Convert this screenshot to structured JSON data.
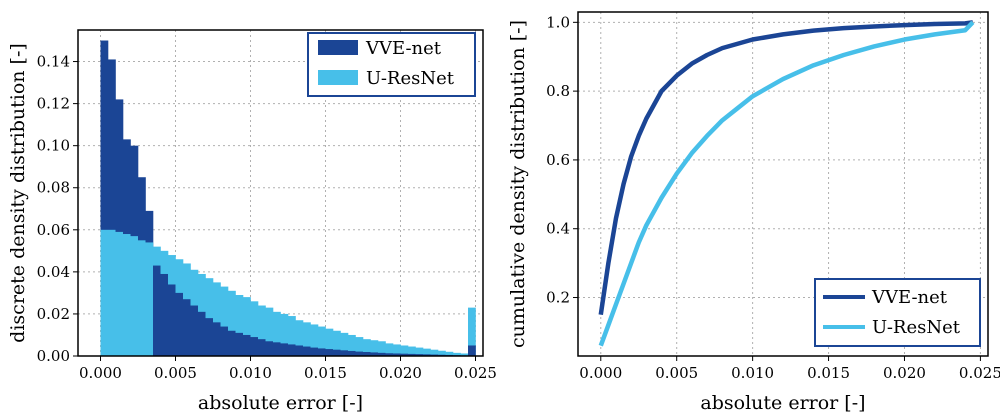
{
  "colors": {
    "vve": "#1b4595",
    "ures": "#47bfe9",
    "legend_border": "#1b4595"
  },
  "chart_data": [
    {
      "type": "bar",
      "xlabel": "absolute error [-]",
      "ylabel": "discrete density distribution [-]",
      "xlim": [
        -0.0015,
        0.0255
      ],
      "ylim": [
        0,
        0.155
      ],
      "xticks": [
        "0.000",
        "0.005",
        "0.010",
        "0.015",
        "0.020",
        "0.025"
      ],
      "yticks": [
        "0.00",
        "0.02",
        "0.04",
        "0.06",
        "0.08",
        "0.10",
        "0.12",
        "0.14"
      ],
      "grid": true,
      "legend_position": "top-right",
      "bin_width": 0.0005,
      "bin_start": 0.0,
      "series": [
        {
          "name": "VVE-net",
          "values": [
            0.15,
            0.141,
            0.122,
            0.103,
            0.1,
            0.085,
            0.069,
            0.043,
            0.039,
            0.034,
            0.03,
            0.027,
            0.024,
            0.021,
            0.018,
            0.016,
            0.014,
            0.012,
            0.011,
            0.01,
            0.009,
            0.008,
            0.007,
            0.0065,
            0.006,
            0.0055,
            0.005,
            0.0045,
            0.004,
            0.0036,
            0.0033,
            0.003,
            0.0027,
            0.0024,
            0.0021,
            0.0019,
            0.0017,
            0.0015,
            0.0013,
            0.0012,
            0.0011,
            0.001,
            0.0009,
            0.0008,
            0.0007,
            0.0006,
            0.0005,
            0.0004,
            0.0003,
            0.005
          ]
        },
        {
          "name": "U-ResNet",
          "values": [
            0.06,
            0.06,
            0.059,
            0.058,
            0.057,
            0.055,
            0.054,
            0.052,
            0.05,
            0.048,
            0.046,
            0.044,
            0.041,
            0.039,
            0.037,
            0.035,
            0.033,
            0.031,
            0.029,
            0.028,
            0.026,
            0.024,
            0.023,
            0.021,
            0.02,
            0.019,
            0.017,
            0.016,
            0.015,
            0.014,
            0.013,
            0.012,
            0.011,
            0.01,
            0.009,
            0.008,
            0.0075,
            0.007,
            0.006,
            0.0055,
            0.005,
            0.0045,
            0.004,
            0.0035,
            0.003,
            0.0025,
            0.002,
            0.0015,
            0.0012,
            0.023
          ]
        }
      ]
    },
    {
      "type": "line",
      "xlabel": "absolute error [-]",
      "ylabel": "cumulative density distribution [-]",
      "xlim": [
        -0.0015,
        0.0255
      ],
      "ylim": [
        0.03,
        1.03
      ],
      "xticks": [
        "0.000",
        "0.005",
        "0.010",
        "0.015",
        "0.020",
        "0.025"
      ],
      "yticks": [
        "0.2",
        "0.4",
        "0.6",
        "0.8",
        "1.0"
      ],
      "grid": true,
      "legend_position": "bottom-right",
      "series": [
        {
          "name": "VVE-net",
          "x": [
            0.0,
            0.0005,
            0.001,
            0.0015,
            0.002,
            0.0025,
            0.003,
            0.0035,
            0.004,
            0.005,
            0.006,
            0.007,
            0.008,
            0.01,
            0.012,
            0.014,
            0.016,
            0.018,
            0.02,
            0.022,
            0.024,
            0.0245
          ],
          "y": [
            0.15,
            0.3,
            0.43,
            0.53,
            0.61,
            0.67,
            0.72,
            0.76,
            0.8,
            0.845,
            0.88,
            0.905,
            0.925,
            0.95,
            0.965,
            0.976,
            0.983,
            0.988,
            0.992,
            0.995,
            0.997,
            1.0
          ]
        },
        {
          "name": "U-ResNet",
          "x": [
            0.0,
            0.0005,
            0.001,
            0.0015,
            0.002,
            0.0025,
            0.003,
            0.004,
            0.005,
            0.006,
            0.007,
            0.008,
            0.009,
            0.01,
            0.012,
            0.014,
            0.016,
            0.018,
            0.02,
            0.022,
            0.024,
            0.0245
          ],
          "y": [
            0.06,
            0.12,
            0.18,
            0.24,
            0.3,
            0.36,
            0.41,
            0.49,
            0.56,
            0.62,
            0.67,
            0.715,
            0.75,
            0.785,
            0.835,
            0.875,
            0.905,
            0.93,
            0.95,
            0.965,
            0.977,
            1.0
          ]
        }
      ]
    }
  ]
}
